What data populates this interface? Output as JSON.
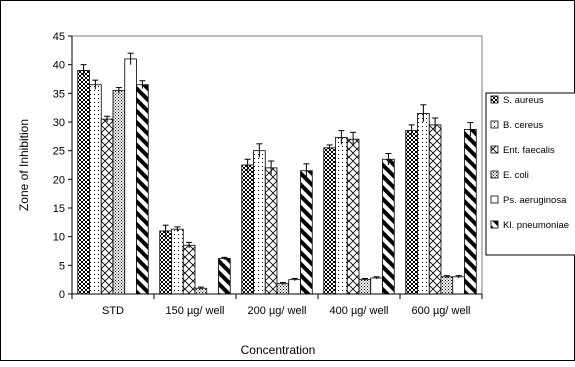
{
  "chart_data": {
    "type": "bar",
    "title": "",
    "xlabel": "Concentration",
    "ylabel": "Zone of Inhibition",
    "ylim": [
      0,
      45
    ],
    "ytick_step": 5,
    "grid": false,
    "legend_position": "right",
    "categories": [
      "STD",
      "150 µg/ well",
      "200 µg/ well",
      "400 µg/ well",
      "600 µg/ well"
    ],
    "series": [
      {
        "name": "S. aureus",
        "pattern": "dots",
        "values": [
          39,
          11,
          22.5,
          25.5,
          28.5
        ],
        "errors": [
          1,
          1,
          1,
          0.5,
          1
        ]
      },
      {
        "name": "B. cereus",
        "pattern": "light-dots",
        "values": [
          36.5,
          11.3,
          25,
          27.3,
          31.5
        ],
        "errors": [
          0.8,
          0.4,
          1.2,
          1.2,
          1.5
        ]
      },
      {
        "name": "Ent. faecalis",
        "pattern": "crosshatch",
        "values": [
          30.5,
          8.5,
          22,
          27,
          29.5
        ],
        "errors": [
          0.5,
          0.5,
          1.2,
          1.2,
          1.2
        ]
      },
      {
        "name": "E. coli",
        "pattern": "dense-dots",
        "values": [
          35.5,
          1,
          1.8,
          2.5,
          3
        ],
        "errors": [
          0.5,
          0.2,
          0.2,
          0.2,
          0.2
        ]
      },
      {
        "name": "Ps. aeruginosa",
        "pattern": "white",
        "values": [
          41,
          0,
          2.5,
          2.8,
          3
        ],
        "errors": [
          1,
          0,
          0.2,
          0.2,
          0.2
        ]
      },
      {
        "name": "Kl. pneumoniae",
        "pattern": "diagonal",
        "values": [
          36.5,
          6.2,
          21.5,
          23.5,
          28.7
        ],
        "errors": [
          0.7,
          0.2,
          1.2,
          1,
          1.2
        ]
      }
    ]
  }
}
